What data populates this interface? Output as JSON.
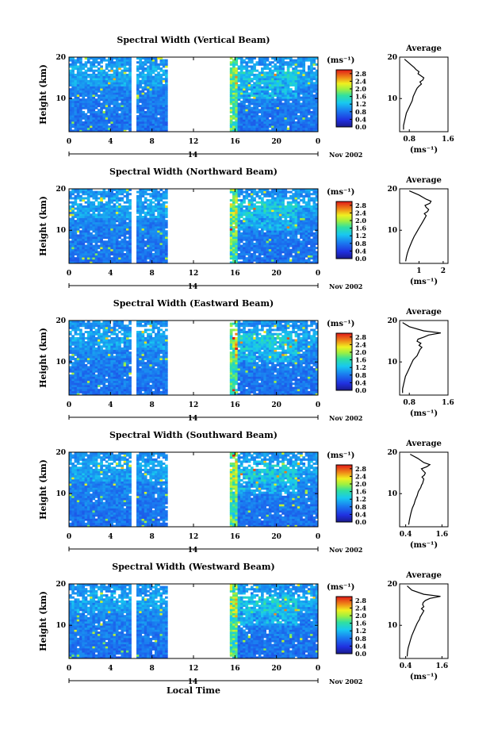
{
  "chart_data": [
    {
      "type": "heatmap",
      "title": "Spectral Width (Vertical Beam)",
      "ylabel": "Height (km)",
      "xticks": [
        "0",
        "4",
        "8",
        "12",
        "16",
        "20",
        "0"
      ],
      "yticks": [
        "10",
        "20"
      ],
      "xlim": [
        0,
        24
      ],
      "ylim": [
        2,
        20
      ],
      "day_label": "14",
      "date_label": "Nov 2002",
      "data_gaps_hours": [
        [
          6.1,
          6.5
        ],
        [
          9.5,
          15.4
        ]
      ],
      "colorbar": {
        "unit": "(ms⁻¹)",
        "ticks": [
          "0.0",
          "0.4",
          "0.8",
          "1.2",
          "1.6",
          "2.0",
          "2.4",
          "2.8"
        ],
        "range": [
          0.0,
          3.0
        ]
      },
      "profile": {
        "title": "Average",
        "xlabel": "(ms⁻¹)",
        "xticks": [
          "0.8",
          "1.6"
        ],
        "yticks": [
          "10",
          "20"
        ],
        "xlim": [
          0.6,
          1.6
        ],
        "ylim": [
          2,
          20
        ],
        "x": [
          0.68,
          0.68,
          0.7,
          0.72,
          0.74,
          0.78,
          0.82,
          0.86,
          0.88,
          0.9,
          0.92,
          0.94,
          0.96,
          1.0,
          1.05,
          1.02,
          1.08,
          1.1,
          1.04,
          0.98,
          1.0,
          0.94,
          0.9,
          0.8,
          0.7
        ],
        "y": [
          2.5,
          3.5,
          4.5,
          5.5,
          6.5,
          7.5,
          8.5,
          9.5,
          10.5,
          11.0,
          11.5,
          12.0,
          12.5,
          13.0,
          13.5,
          14.0,
          14.5,
          15.0,
          15.5,
          16.0,
          16.5,
          17.0,
          17.5,
          18.5,
          19.5
        ]
      }
    },
    {
      "type": "heatmap",
      "title": "Spectral Width (Northward Beam)",
      "ylabel": "Height (km)",
      "xticks": [
        "0",
        "4",
        "8",
        "12",
        "16",
        "20",
        "0"
      ],
      "yticks": [
        "10",
        "20"
      ],
      "xlim": [
        0,
        24
      ],
      "ylim": [
        2,
        20
      ],
      "day_label": "14",
      "date_label": "Nov 2002",
      "data_gaps_hours": [
        [
          6.1,
          6.5
        ],
        [
          9.5,
          15.4
        ]
      ],
      "colorbar": {
        "unit": "(ms⁻¹)",
        "ticks": [
          "0.0",
          "0.4",
          "0.8",
          "1.2",
          "1.6",
          "2.0",
          "2.4",
          "2.8"
        ],
        "range": [
          0.0,
          3.0
        ]
      },
      "profile": {
        "title": "Average",
        "xlabel": "(ms⁻¹)",
        "xticks": [
          "1",
          "2"
        ],
        "yticks": [
          "10",
          "20"
        ],
        "xlim": [
          0.2,
          2.2
        ],
        "ylim": [
          2,
          20
        ],
        "x": [
          0.45,
          0.48,
          0.52,
          0.58,
          0.65,
          0.72,
          0.8,
          0.9,
          1.0,
          1.05,
          1.1,
          1.15,
          1.2,
          1.25,
          1.3,
          1.22,
          1.35,
          1.4,
          1.3,
          1.25,
          1.45,
          1.5,
          1.3,
          1.0,
          0.6
        ],
        "y": [
          2.5,
          3.5,
          4.5,
          5.5,
          6.5,
          7.5,
          8.5,
          9.5,
          10.5,
          11.0,
          11.5,
          12.0,
          12.5,
          13.0,
          13.5,
          14.0,
          14.5,
          15.0,
          15.5,
          16.0,
          16.5,
          17.0,
          17.5,
          18.5,
          19.5
        ]
      }
    },
    {
      "type": "heatmap",
      "title": "Spectral Width (Eastward Beam)",
      "ylabel": "Height (km)",
      "xticks": [
        "0",
        "4",
        "8",
        "12",
        "16",
        "20",
        "0"
      ],
      "yticks": [
        "10",
        "20"
      ],
      "xlim": [
        0,
        24
      ],
      "ylim": [
        2,
        20
      ],
      "day_label": "14",
      "date_label": "Nov 2002",
      "data_gaps_hours": [
        [
          6.1,
          6.5
        ],
        [
          9.5,
          15.4
        ]
      ],
      "colorbar": {
        "unit": "(ms⁻¹)",
        "ticks": [
          "0.0",
          "0.4",
          "0.8",
          "1.2",
          "1.6",
          "2.0",
          "2.4",
          "2.8"
        ],
        "range": [
          0.0,
          3.0
        ]
      },
      "profile": {
        "title": "Average",
        "xlabel": "(ms⁻¹)",
        "xticks": [
          "0.8",
          "1.6"
        ],
        "yticks": [
          "10",
          "20"
        ],
        "xlim": [
          0.6,
          1.6
        ],
        "ylim": [
          2,
          20
        ],
        "x": [
          0.66,
          0.66,
          0.68,
          0.7,
          0.72,
          0.76,
          0.8,
          0.84,
          0.88,
          0.92,
          0.96,
          0.98,
          1.0,
          1.02,
          1.06,
          1.0,
          1.04,
          0.96,
          0.98,
          1.1,
          1.2,
          1.45,
          1.1,
          0.8,
          0.66
        ],
        "y": [
          2.5,
          3.5,
          4.5,
          5.5,
          6.5,
          7.5,
          8.5,
          9.5,
          10.5,
          11.0,
          11.5,
          12.0,
          12.5,
          13.0,
          13.5,
          14.0,
          14.5,
          15.0,
          15.5,
          16.0,
          16.5,
          17.0,
          17.5,
          18.5,
          19.5
        ]
      }
    },
    {
      "type": "heatmap",
      "title": "Spectral Width (Southward Beam)",
      "ylabel": "Height (km)",
      "xticks": [
        "0",
        "4",
        "8",
        "12",
        "16",
        "20",
        "0"
      ],
      "yticks": [
        "10",
        "20"
      ],
      "xlim": [
        0,
        24
      ],
      "ylim": [
        2,
        20
      ],
      "day_label": "14",
      "date_label": "Nov 2002",
      "data_gaps_hours": [
        [
          6.1,
          6.5
        ],
        [
          9.5,
          15.4
        ]
      ],
      "colorbar": {
        "unit": "(ms⁻¹)",
        "ticks": [
          "0.0",
          "0.4",
          "0.8",
          "1.2",
          "1.6",
          "2.0",
          "2.4",
          "2.8"
        ],
        "range": [
          0.0,
          3.0
        ]
      },
      "profile": {
        "title": "Average",
        "xlabel": "(ms⁻¹)",
        "xticks": [
          "0.4",
          "1.6"
        ],
        "yticks": [
          "10",
          "20"
        ],
        "xlim": [
          0.2,
          1.8
        ],
        "ylim": [
          2,
          20
        ],
        "x": [
          0.5,
          0.52,
          0.55,
          0.58,
          0.62,
          0.68,
          0.72,
          0.78,
          0.82,
          0.86,
          0.9,
          0.92,
          0.96,
          0.98,
          1.0,
          0.94,
          1.02,
          1.05,
          0.98,
          0.92,
          1.1,
          1.2,
          1.0,
          0.8,
          0.55
        ],
        "y": [
          2.5,
          3.5,
          4.5,
          5.5,
          6.5,
          7.5,
          8.5,
          9.5,
          10.5,
          11.0,
          11.5,
          12.0,
          12.5,
          13.0,
          13.5,
          14.0,
          14.5,
          15.0,
          15.5,
          16.0,
          16.5,
          17.0,
          17.5,
          18.5,
          19.5
        ]
      }
    },
    {
      "type": "heatmap",
      "title": "Spectral Width (Westward Beam)",
      "ylabel": "Height (km)",
      "xlabel": "Local Time",
      "xticks": [
        "0",
        "4",
        "8",
        "12",
        "16",
        "20",
        "0"
      ],
      "yticks": [
        "10",
        "20"
      ],
      "xlim": [
        0,
        24
      ],
      "ylim": [
        2,
        20
      ],
      "day_label": "14",
      "date_label": "Nov 2002",
      "data_gaps_hours": [
        [
          6.1,
          6.5
        ],
        [
          9.5,
          15.4
        ]
      ],
      "colorbar": {
        "unit": "(ms⁻¹)",
        "ticks": [
          "0.0",
          "0.4",
          "0.8",
          "1.2",
          "1.6",
          "2.0",
          "2.4",
          "2.8"
        ],
        "range": [
          0.0,
          3.0
        ]
      },
      "profile": {
        "title": "Average",
        "xlabel": "(ms⁻¹)",
        "xticks": [
          "0.4",
          "1.6"
        ],
        "yticks": [
          "10",
          "20"
        ],
        "xlim": [
          0.2,
          1.8
        ],
        "ylim": [
          2,
          20
        ],
        "x": [
          0.45,
          0.46,
          0.48,
          0.52,
          0.56,
          0.6,
          0.66,
          0.72,
          0.78,
          0.82,
          0.86,
          0.88,
          0.92,
          0.96,
          1.0,
          0.92,
          1.0,
          0.96,
          0.98,
          1.05,
          1.2,
          1.55,
          1.0,
          0.6,
          0.45
        ],
        "y": [
          2.5,
          3.5,
          4.5,
          5.5,
          6.5,
          7.5,
          8.5,
          9.5,
          10.5,
          11.0,
          11.5,
          12.0,
          12.5,
          13.0,
          13.5,
          14.0,
          14.5,
          15.0,
          15.5,
          16.0,
          16.5,
          17.0,
          17.5,
          18.5,
          19.5
        ]
      }
    }
  ]
}
